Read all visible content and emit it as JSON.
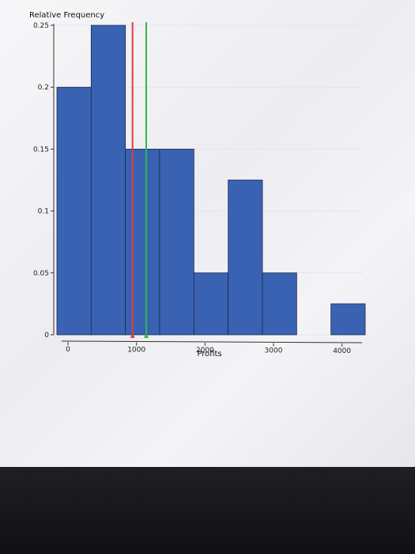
{
  "chart_data": {
    "type": "bar",
    "ylabel": "Relative Frequency",
    "xlabel": "Profits",
    "xlim": [
      0,
      4500
    ],
    "ylim": [
      0,
      0.25
    ],
    "x_ticks": [
      "0",
      "1000",
      "2000",
      "3000",
      "4000"
    ],
    "y_ticks": [
      "0",
      "0.05",
      "0.1",
      "0.15",
      "0.2",
      "0.25"
    ],
    "bin_edges": [
      0,
      500,
      1000,
      1500,
      2000,
      2500,
      3000,
      3500,
      4000,
      4500
    ],
    "values": [
      0.2,
      0.25,
      0.15,
      0.15,
      0.05,
      0.125,
      0.05,
      0,
      0.025
    ],
    "bar_color": "#3a62b3",
    "reference_lines": [
      {
        "x": 1150,
        "color": "#e23b3b"
      },
      {
        "x": 1350,
        "color": "#2fb84a"
      }
    ]
  }
}
